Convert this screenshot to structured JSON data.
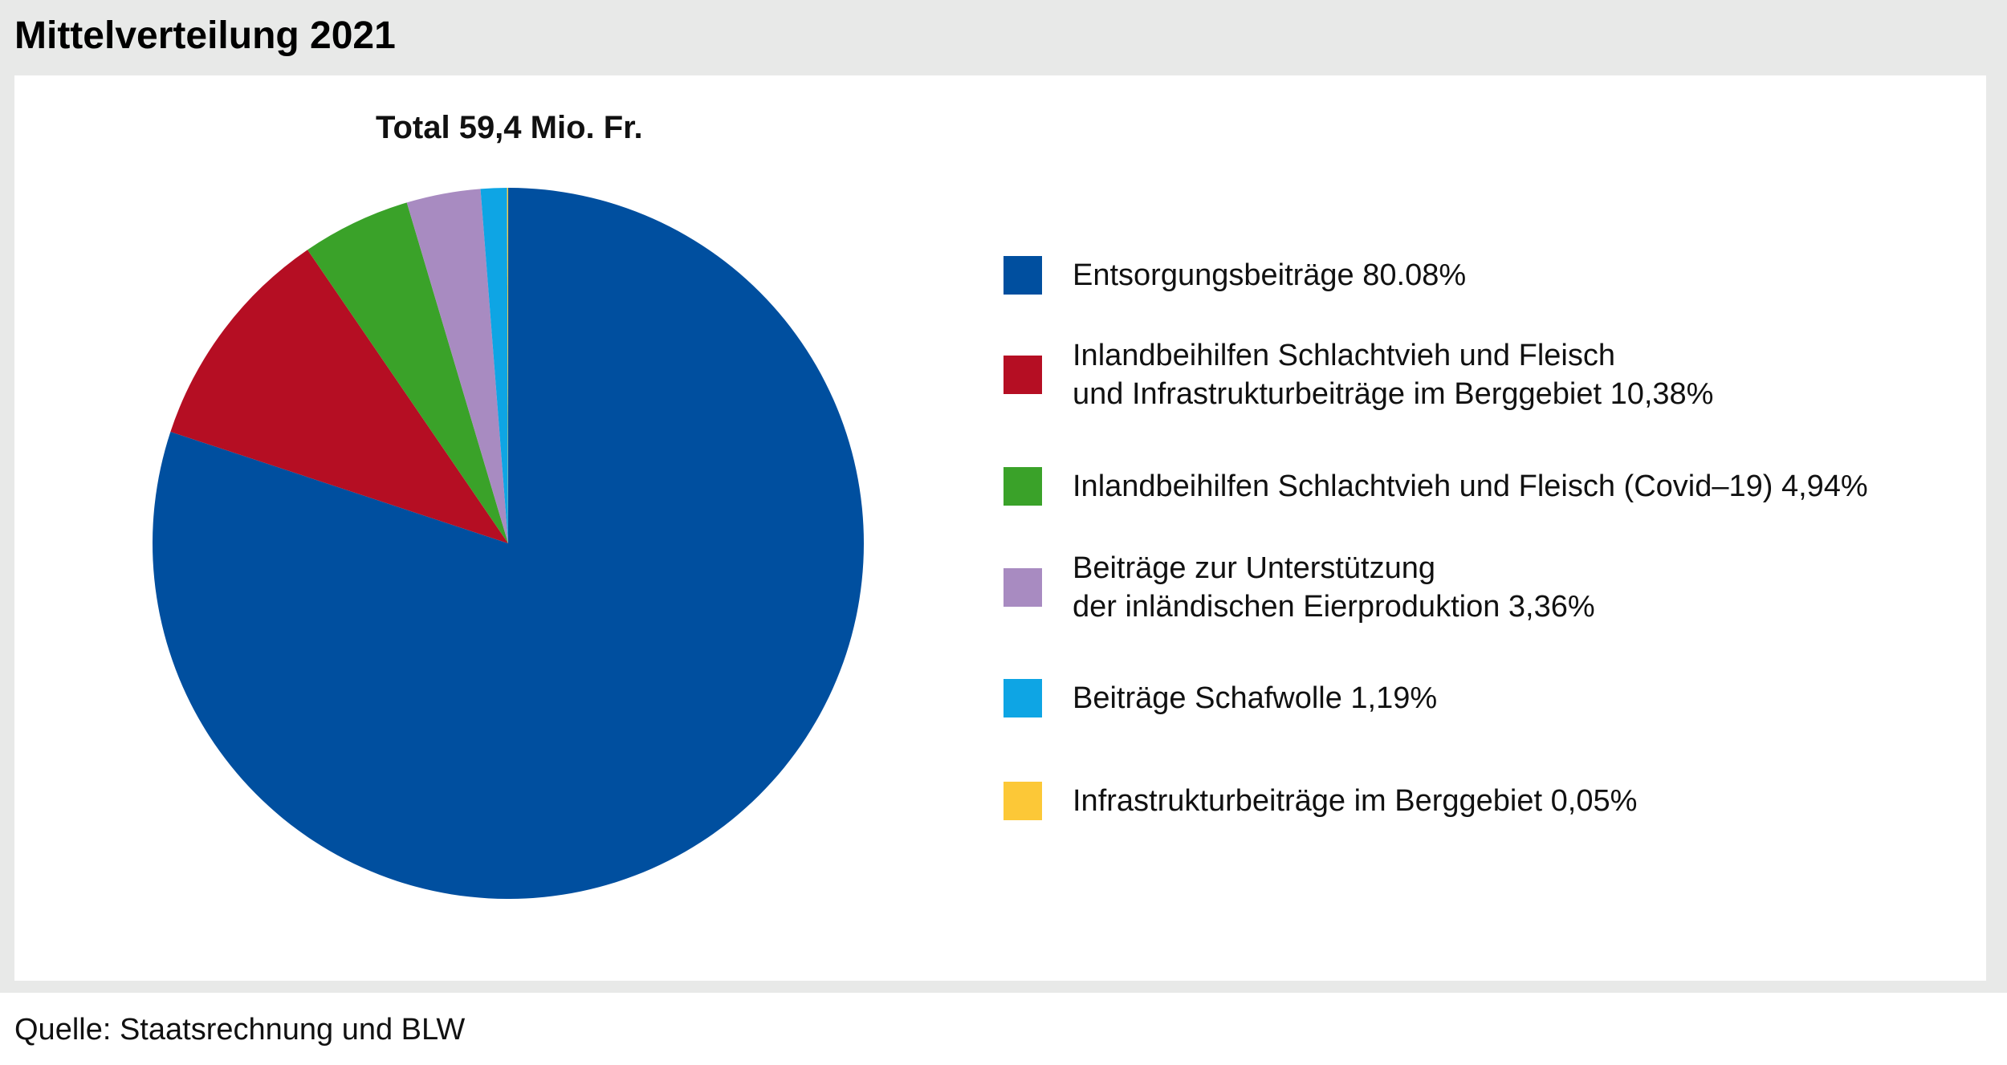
{
  "header": {
    "title": "Mittelverteilung 2021"
  },
  "source": "Quelle: Staatsrechnung und BLW",
  "chart_data": {
    "type": "pie",
    "title": "Mittelverteilung 2021",
    "subtitle": "Total 59,4 Mio. Fr.",
    "start_angle": "12 o'clock",
    "direction": "clockwise",
    "legend_position": "right",
    "slices": [
      {
        "label": "Entsorgungsbeiträge 80.08%",
        "value": 80.08,
        "color": "#004f9f"
      },
      {
        "label": "Inlandbeihilfen Schlachtvieh und Fleisch\nund Infrastrukturbeiträge im Berggebiet 10,38%",
        "value": 10.38,
        "color": "#b50e23"
      },
      {
        "label": "Inlandbeihilfen Schlachtvieh und Fleisch (Covid–19) 4,94%",
        "value": 4.94,
        "color": "#3aa229"
      },
      {
        "label": "Beiträge zur Unterstützung\nder inländischen Eierproduktion 3,36%",
        "value": 3.36,
        "color": "#a88bc1"
      },
      {
        "label": "Beiträge Schafwolle 1,19%",
        "value": 1.19,
        "color": "#0ea5e4"
      },
      {
        "label": "Infrastrukturbeiträge im Berggebiet 0,05%",
        "value": 0.05,
        "color": "#fcc837"
      }
    ]
  }
}
